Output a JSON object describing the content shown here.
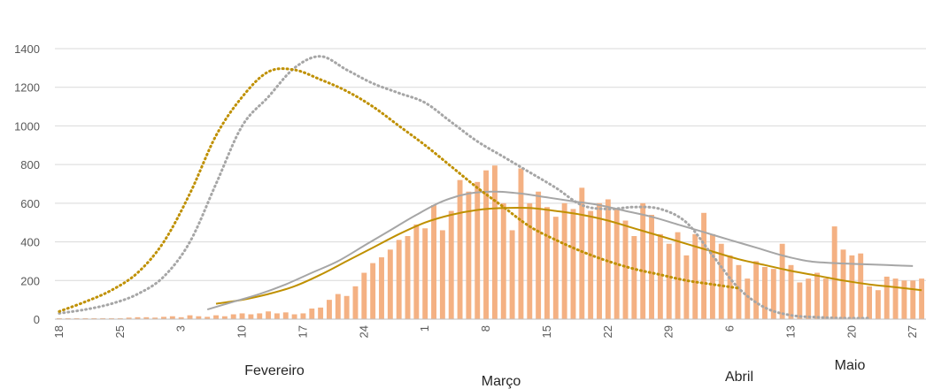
{
  "chart_data": {
    "type": "bar",
    "title": "",
    "xlabel": "",
    "ylabel": "",
    "ylim": [
      0,
      1400
    ],
    "yticks": [
      0,
      200,
      400,
      600,
      800,
      1000,
      1200,
      1400
    ],
    "xticks": [
      "18",
      "25",
      "3",
      "10",
      "17",
      "24",
      "1",
      "8",
      "15",
      "22",
      "29",
      "6",
      "13",
      "20",
      "27"
    ],
    "months": [
      "Fevereiro",
      "Março",
      "Abril",
      "Maio"
    ],
    "grid": true,
    "x_start": "2021-01-18",
    "colors": {
      "bars": "#f4b183",
      "trend_gold": "#bf9000",
      "trend_gray": "#a6a6a6",
      "dotted_gray": "#a6a6a6",
      "dotted_gold": "#bf9000"
    },
    "series": [
      {
        "kind": "bar",
        "x_start": "2021-01-18",
        "values": [
          5,
          5,
          5,
          5,
          5,
          5,
          5,
          5,
          8,
          10,
          10,
          8,
          12,
          15,
          10,
          20,
          15,
          12,
          20,
          15,
          25,
          30,
          25,
          30,
          40,
          30,
          35,
          25,
          30,
          55,
          60,
          100,
          130,
          120,
          170,
          240,
          290,
          320,
          360,
          410,
          430,
          490,
          470,
          590,
          460,
          560,
          720,
          660,
          710,
          770,
          795,
          600,
          460,
          780,
          600,
          660,
          580,
          530,
          600,
          570,
          680,
          560,
          600,
          620,
          570,
          510,
          430,
          600,
          540,
          440,
          390,
          450,
          330,
          440,
          550,
          440,
          390,
          330,
          280,
          210,
          300,
          270,
          260,
          390,
          280,
          190,
          210,
          240,
          210,
          480,
          360,
          330,
          340,
          170,
          150,
          220,
          210,
          200,
          200,
          210
        ]
      },
      {
        "kind": "line",
        "style": "solid",
        "color": "gold",
        "x_start": "2021-02-05",
        "values": [
          80,
          100,
          130,
          170,
          230,
          300,
          370,
          440,
          500,
          540,
          565,
          575,
          575,
          560,
          540,
          510,
          470,
          430,
          390,
          350,
          310,
          280,
          250,
          225,
          200,
          180,
          165,
          150,
          140,
          130,
          120,
          110,
          100,
          95,
          90
        ]
      },
      {
        "kind": "line",
        "style": "solid",
        "color": "gray",
        "x_start": "2021-02-04",
        "values": [
          50,
          90,
          130,
          180,
          240,
          300,
          380,
          460,
          540,
          610,
          650,
          660,
          650,
          630,
          610,
          590,
          560,
          530,
          490,
          450,
          410,
          370,
          330,
          300,
          290,
          285,
          280,
          275,
          250,
          200,
          140,
          80,
          40,
          15,
          10
        ]
      },
      {
        "kind": "line",
        "style": "dotted",
        "color": "gray",
        "x_start": "2021-01-18",
        "values": [
          30,
          50,
          80,
          130,
          220,
          400,
          700,
          1000,
          1150,
          1300,
          1360,
          1290,
          1220,
          1170,
          1120,
          1020,
          920,
          840,
          760,
          680,
          590,
          570,
          580,
          570,
          500,
          330,
          160,
          60,
          20,
          10,
          5,
          5
        ]
      },
      {
        "kind": "line",
        "style": "dotted",
        "color": "gold",
        "x_start": "2021-01-18",
        "values": [
          40,
          90,
          150,
          240,
          400,
          650,
          950,
          1150,
          1280,
          1290,
          1240,
          1180,
          1100,
          1000,
          900,
          790,
          680,
          580,
          480,
          410,
          350,
          300,
          260,
          230,
          200,
          180,
          160
        ]
      }
    ]
  }
}
